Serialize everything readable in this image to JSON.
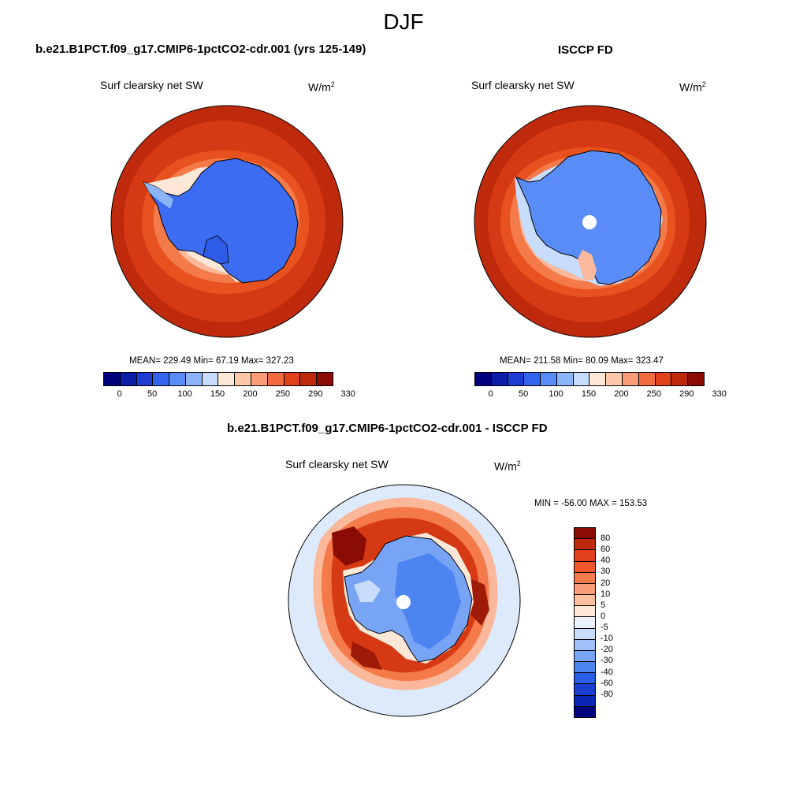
{
  "figure": {
    "title": "DJF"
  },
  "colors": {
    "abs_scale": [
      "#00007f",
      "#0a1ea8",
      "#1e3cd2",
      "#3264ee",
      "#5a8cf8",
      "#8cb4f8",
      "#c8dcfc",
      "#fde8d8",
      "#fcc8a8",
      "#f99c78",
      "#f26a40",
      "#e0401a",
      "#c02a0c",
      "#8a0c04"
    ],
    "diff_scale": [
      "#8a0c04",
      "#c02a0c",
      "#e0401a",
      "#f2582e",
      "#f77a4c",
      "#f99c78",
      "#fcc0a0",
      "#fde8d8",
      "#eaf2fc",
      "#c8dcfc",
      "#a0c0fa",
      "#78a4f6",
      "#4c84f0",
      "#2a5ee6",
      "#1a3ed0",
      "#0c26b4",
      "#00007f"
    ]
  },
  "panels": {
    "model": {
      "title": "b.e21.B1PCT.f09_g17.CMIP6-1pctCO2-cdr.001 (yrs 125-149)",
      "variable": "Surf clearsky net SW",
      "units_base": "W/m",
      "units_exp": "2",
      "stats": "MEAN= 229.49  Min=  67.19  Max= 327.23"
    },
    "obs": {
      "title": "ISCCP FD",
      "variable": "Surf clearsky net SW",
      "units_base": "W/m",
      "units_exp": "2",
      "stats": "MEAN= 211.58  Min=  80.09  Max= 323.47"
    },
    "diff": {
      "title": "b.e21.B1PCT.f09_g17.CMIP6-1pctCO2-cdr.001 - ISCCP FD",
      "variable": "Surf clearsky net SW",
      "units_base": "W/m",
      "units_exp": "2",
      "stats": "MIN = -56.00 MAX = 153.53"
    }
  },
  "colorbar_abs": {
    "ticks": [
      "0",
      "50",
      "100",
      "150",
      "200",
      "250",
      "290",
      "330"
    ]
  },
  "colorbar_diff": {
    "ticks": [
      "80",
      "60",
      "40",
      "30",
      "20",
      "10",
      "5",
      "0",
      "-5",
      "-10",
      "-20",
      "-30",
      "-40",
      "-60",
      "-80"
    ]
  }
}
